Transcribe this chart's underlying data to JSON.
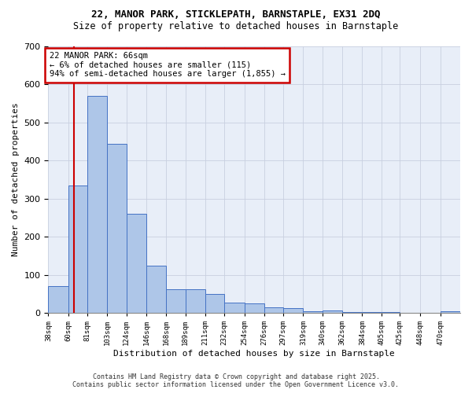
{
  "title1": "22, MANOR PARK, STICKLEPATH, BARNSTAPLE, EX31 2DQ",
  "title2": "Size of property relative to detached houses in Barnstaple",
  "xlabel": "Distribution of detached houses by size in Barnstaple",
  "ylabel": "Number of detached properties",
  "bins": [
    38,
    60,
    81,
    103,
    124,
    146,
    168,
    189,
    211,
    232,
    254,
    276,
    297,
    319,
    340,
    362,
    384,
    405,
    425,
    448,
    470
  ],
  "values": [
    70,
    335,
    570,
    445,
    260,
    125,
    62,
    62,
    50,
    28,
    25,
    14,
    13,
    5,
    6,
    3,
    3,
    2,
    1,
    1,
    5
  ],
  "bar_color": "#aec6e8",
  "bar_edge_color": "#4472c4",
  "bg_color": "#e8eef8",
  "red_line_x": 66,
  "annotation_text": "22 MANOR PARK: 66sqm\n← 6% of detached houses are smaller (115)\n94% of semi-detached houses are larger (1,855) →",
  "annotation_box_color": "#ffffff",
  "annotation_border_color": "#cc0000",
  "footer1": "Contains HM Land Registry data © Crown copyright and database right 2025.",
  "footer2": "Contains public sector information licensed under the Open Government Licence v3.0.",
  "ylim": [
    0,
    700
  ],
  "yticks": [
    0,
    100,
    200,
    300,
    400,
    500,
    600,
    700
  ]
}
